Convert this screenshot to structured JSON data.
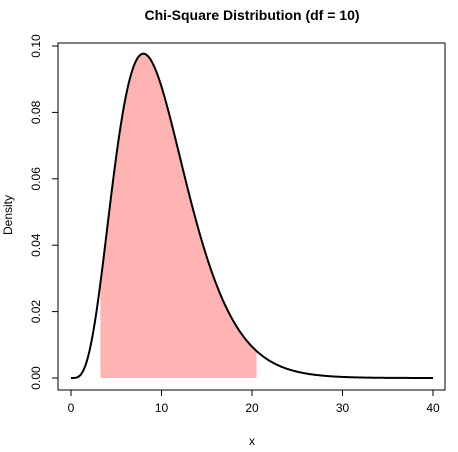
{
  "chart_data": {
    "type": "line",
    "title": "Chi-Square Distribution (df = 10)",
    "xlabel": "x",
    "ylabel": "Density",
    "df": 10,
    "xlim": [
      0,
      40
    ],
    "ylim": [
      0,
      0.1
    ],
    "x_ticks": [
      0,
      10,
      20,
      30,
      40
    ],
    "y_ticks": [
      0.0,
      0.02,
      0.04,
      0.06,
      0.08,
      0.1
    ],
    "x_tick_labels": [
      "0",
      "10",
      "20",
      "30",
      "40"
    ],
    "y_tick_labels": [
      "0.00",
      "0.02",
      "0.04",
      "0.06",
      "0.08",
      "0.10"
    ],
    "series": [
      {
        "color": "#000000"
      }
    ],
    "shaded_region": {
      "from": 3.25,
      "to": 20.5,
      "color": "#ffb3b3"
    },
    "grid": false,
    "legend": "none"
  }
}
